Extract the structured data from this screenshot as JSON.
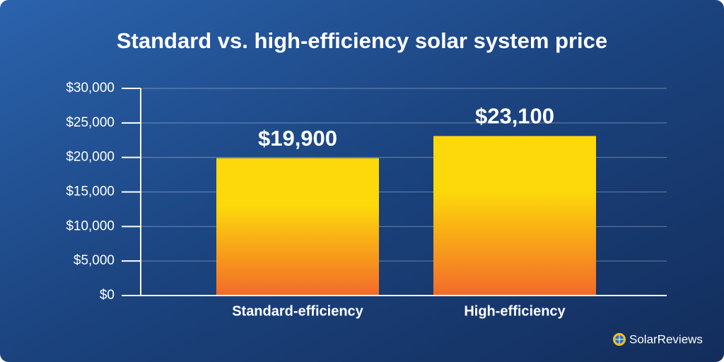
{
  "chart_data": {
    "type": "bar",
    "title": "Standard vs. high-efficiency solar system price",
    "categories": [
      "Standard-efficiency",
      "High-efficiency"
    ],
    "values": [
      19900,
      23100
    ],
    "value_labels": [
      "$19,900",
      "$23,100"
    ],
    "gradient": [
      "#fdd80a",
      "#f26a2a"
    ],
    "ylim": [
      0,
      30000
    ],
    "yticks": [
      {
        "value": 0,
        "label": "$0"
      },
      {
        "value": 5000,
        "label": "$5,000"
      },
      {
        "value": 10000,
        "label": "$10,000"
      },
      {
        "value": 15000,
        "label": "$15,000"
      },
      {
        "value": 20000,
        "label": "$20,000"
      },
      {
        "value": 25000,
        "label": "$25,000"
      },
      {
        "value": 30000,
        "label": "$30,000"
      }
    ],
    "grid": true
  },
  "brand": "SolarReviews"
}
